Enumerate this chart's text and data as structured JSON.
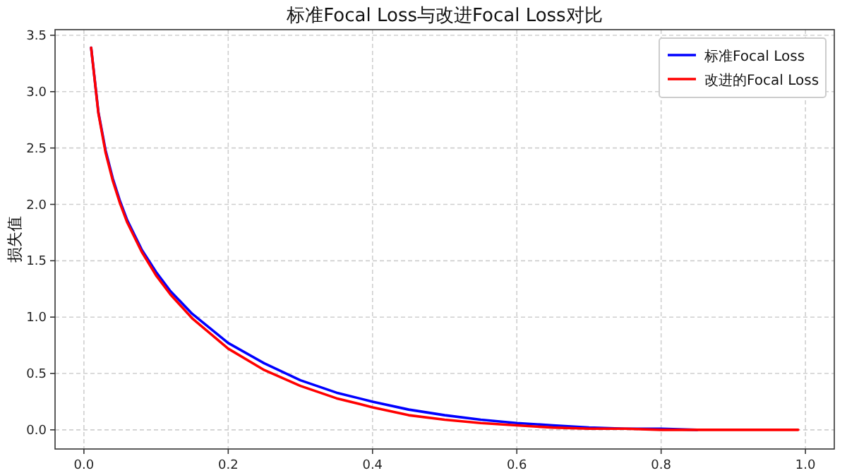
{
  "chart_data": {
    "type": "line",
    "title": "标准Focal Loss与改进Focal Loss对比",
    "ylabel": "损失值",
    "x": [
      0.01,
      0.02,
      0.03,
      0.04,
      0.05,
      0.06,
      0.08,
      0.1,
      0.12,
      0.15,
      0.2,
      0.25,
      0.3,
      0.35,
      0.4,
      0.45,
      0.5,
      0.55,
      0.6,
      0.65,
      0.7,
      0.75,
      0.8,
      0.85,
      0.9,
      0.95,
      0.99
    ],
    "series": [
      {
        "name": "标准Focal Loss",
        "color": "#0000ff",
        "values": [
          3.39,
          2.82,
          2.48,
          2.23,
          2.03,
          1.86,
          1.6,
          1.4,
          1.23,
          1.03,
          0.77,
          0.59,
          0.44,
          0.33,
          0.25,
          0.18,
          0.13,
          0.09,
          0.06,
          0.04,
          0.02,
          0.01,
          0.01,
          0,
          null,
          null,
          null
        ]
      },
      {
        "name": "改进的Focal Loss",
        "color": "#ff0000",
        "values": [
          3.39,
          2.81,
          2.46,
          2.21,
          2.01,
          1.84,
          1.58,
          1.37,
          1.2,
          0.99,
          0.72,
          0.53,
          0.39,
          0.28,
          0.2,
          0.13,
          0.09,
          0.06,
          0.04,
          0.02,
          0.01,
          0.01,
          0,
          0,
          0,
          0,
          0
        ]
      }
    ],
    "xlim": [
      -0.04,
      1.04
    ],
    "ylim": [
      -0.17,
      3.55
    ],
    "xticks": [
      {
        "value": 0,
        "label": "0.0"
      },
      0.2,
      0.4,
      0.6,
      0.8,
      {
        "value": 1,
        "label": "1.0"
      }
    ],
    "yticks": [
      {
        "value": 0,
        "label": "0.0"
      },
      0.5,
      {
        "value": 1,
        "label": "1.0"
      },
      1.5,
      {
        "value": 2,
        "label": "2.0"
      },
      2.5,
      {
        "value": 3,
        "label": "3.0"
      },
      3.5
    ],
    "grid": true,
    "legend": "top right",
    "line_style": "solid",
    "marker": "none"
  }
}
